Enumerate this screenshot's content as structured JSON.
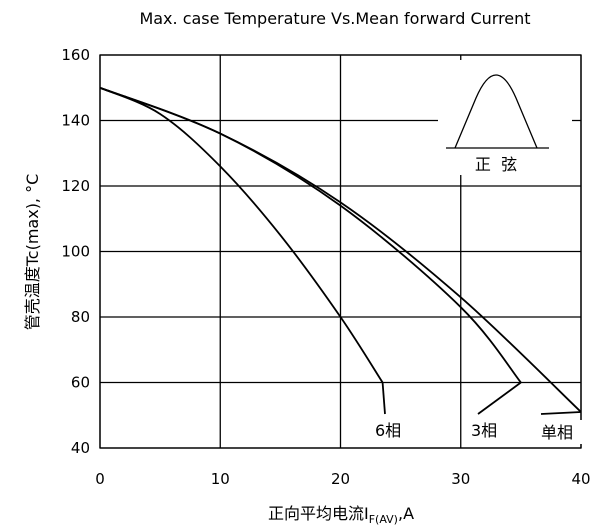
{
  "chart_data": {
    "type": "line",
    "title": "Max. case Temperature Vs.Mean forward Current",
    "xlabel_main": "正向平均电流I",
    "xlabel_sub": "F(AV)",
    "xlabel_unit": ",A",
    "ylabel": "管壳温度Tc(max), °C",
    "xlim": [
      0,
      40
    ],
    "ylim": [
      40,
      160
    ],
    "x_ticks": [
      "0",
      "10",
      "20",
      "30",
      "40"
    ],
    "y_ticks": [
      "40",
      "60",
      "80",
      "100",
      "120",
      "140",
      "160"
    ],
    "grid": true,
    "series": [
      {
        "name": "6相",
        "x": [
          0,
          5,
          10,
          15,
          20,
          23.5
        ],
        "y": [
          150,
          142,
          126,
          105,
          80,
          60
        ]
      },
      {
        "name": "3相",
        "x": [
          0,
          10,
          20,
          30,
          35
        ],
        "y": [
          150,
          136,
          114,
          83,
          60
        ]
      },
      {
        "name": "单相",
        "x": [
          0,
          10,
          20,
          30,
          40
        ],
        "y": [
          150,
          136,
          115,
          86,
          51
        ]
      }
    ],
    "inset_label": "正  弦"
  }
}
